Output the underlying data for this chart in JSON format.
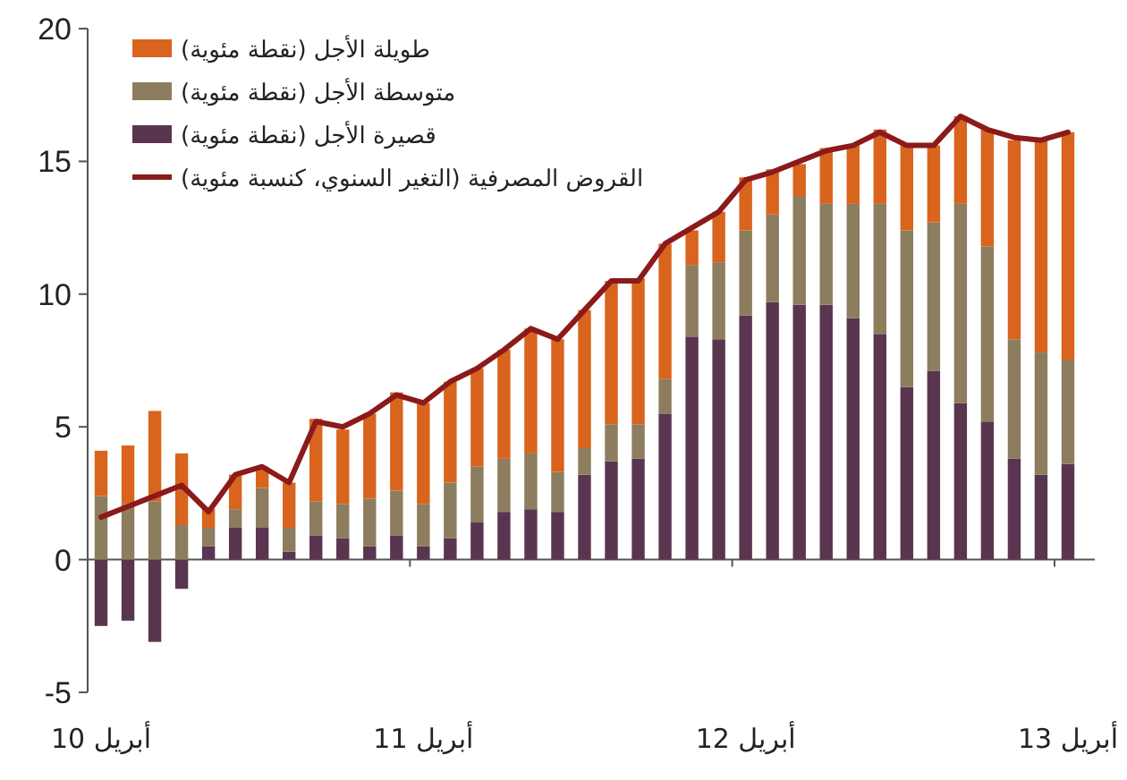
{
  "chart_data": {
    "type": "bar",
    "stacked": true,
    "categories": [
      "أبريل 10",
      null,
      null,
      null,
      null,
      null,
      null,
      null,
      null,
      null,
      null,
      null,
      "أبريل 11",
      null,
      null,
      null,
      null,
      null,
      null,
      null,
      null,
      null,
      null,
      null,
      "أبريل 12",
      null,
      null,
      null,
      null,
      null,
      null,
      null,
      null,
      null,
      null,
      null,
      "أبريل 13"
    ],
    "series": [
      {
        "name": "قصيرة الأجل (نقطة مئوية)",
        "color": "#5a3550",
        "values": [
          -2.5,
          -2.3,
          -3.1,
          -1.1,
          0.5,
          1.2,
          1.2,
          0.3,
          0.9,
          0.8,
          0.5,
          0.9,
          0.5,
          0.8,
          1.4,
          1.8,
          1.9,
          1.8,
          3.2,
          3.7,
          3.8,
          5.5,
          8.4,
          8.3,
          9.2,
          9.7,
          9.6,
          9.6,
          9.1,
          8.5,
          6.5,
          7.1,
          5.9,
          5.2,
          3.8,
          3.2,
          3.6
        ]
      },
      {
        "name": "متوسطة الأجل (نقطة مئوية)",
        "color": "#8c7d5e",
        "values": [
          2.4,
          2.1,
          2.2,
          1.3,
          0.7,
          0.7,
          1.5,
          0.9,
          1.3,
          1.3,
          1.8,
          1.7,
          1.6,
          2.1,
          2.1,
          2.0,
          2.1,
          1.5,
          1.0,
          1.4,
          1.3,
          1.3,
          2.7,
          2.9,
          3.2,
          3.3,
          4.1,
          3.8,
          4.3,
          4.9,
          5.9,
          5.6,
          7.5,
          6.6,
          4.5,
          4.6,
          3.9
        ]
      },
      {
        "name": "طويلة الأجل (نقطة مئوية)",
        "color": "#d9641e",
        "values": [
          1.7,
          2.2,
          3.4,
          2.7,
          0.7,
          1.3,
          0.8,
          1.7,
          3.1,
          2.8,
          3.2,
          3.7,
          3.8,
          3.8,
          3.7,
          4.1,
          4.7,
          5.0,
          5.2,
          5.4,
          5.5,
          5.1,
          1.3,
          1.9,
          2.0,
          1.7,
          1.2,
          2.1,
          2.2,
          2.8,
          3.2,
          2.9,
          3.3,
          4.4,
          7.5,
          8.0,
          8.6
        ]
      },
      {
        "name": "القروض المصرفية (التغير السنوي، كنسبة مئوية)",
        "type": "line",
        "color": "#8b1a1a",
        "values": [
          1.6,
          2.0,
          2.4,
          2.8,
          1.8,
          3.2,
          3.5,
          2.9,
          5.2,
          5.0,
          5.5,
          6.2,
          5.9,
          6.7,
          7.2,
          7.9,
          8.7,
          8.3,
          9.4,
          10.5,
          10.5,
          11.9,
          12.5,
          13.1,
          14.3,
          14.6,
          15.0,
          15.4,
          15.6,
          16.1,
          15.6,
          15.6,
          16.7,
          16.2,
          15.9,
          15.8,
          16.1
        ]
      }
    ],
    "ylim": [
      -5,
      20
    ],
    "yticks": [
      -5,
      0,
      5,
      10,
      15,
      20
    ],
    "legend": "top left"
  }
}
